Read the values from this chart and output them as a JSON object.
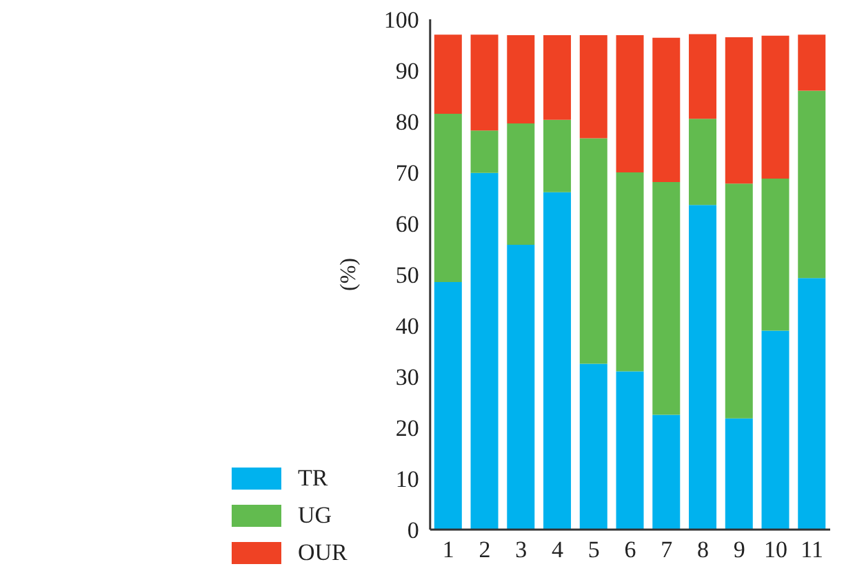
{
  "chart_data": {
    "type": "bar",
    "stacked": true,
    "ylabel": "(%)",
    "categories": [
      "1",
      "2",
      "3",
      "4",
      "5",
      "6",
      "7",
      "8",
      "9",
      "10",
      "11"
    ],
    "series": [
      {
        "name": "TR",
        "color": "#00b2ee",
        "values": [
          48.5,
          69.9,
          55.8,
          66.1,
          32.5,
          31.0,
          22.5,
          63.6,
          21.8,
          39.0,
          49.3
        ]
      },
      {
        "name": "UG",
        "color": "#62bb4f",
        "values": [
          33.0,
          8.3,
          23.8,
          14.2,
          44.2,
          39.0,
          45.6,
          16.9,
          46.0,
          29.8,
          36.7
        ]
      },
      {
        "name": "OUR",
        "color": "#ef4224",
        "values": [
          15.5,
          18.8,
          17.3,
          16.6,
          20.2,
          26.9,
          28.3,
          16.6,
          28.7,
          28.0,
          11.0
        ]
      }
    ],
    "ylim": [
      0,
      100
    ],
    "yticks": [
      0,
      10,
      20,
      30,
      40,
      50,
      60,
      70,
      80,
      90,
      100
    ],
    "grid": false,
    "legend": "bottom left"
  }
}
